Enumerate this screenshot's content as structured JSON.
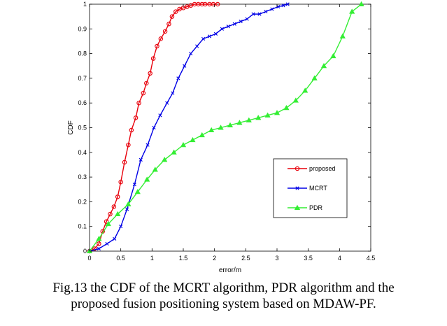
{
  "caption": {
    "line1": "Fig.13 the CDF of the MCRT algorithm, PDR algorithm and the",
    "line2": "proposed fusion positioning system based on MDAW-PF."
  },
  "chart_data": {
    "type": "line",
    "title": "",
    "xlabel": "error/m",
    "ylabel": "CDF",
    "xlim": [
      0,
      4.5
    ],
    "ylim": [
      0,
      1
    ],
    "xticks": [
      "0",
      "0.5",
      "1",
      "1.5",
      "2",
      "2.5",
      "3",
      "3.5",
      "4",
      "4.5"
    ],
    "yticks": [
      "0",
      "0.1",
      "0.2",
      "0.3",
      "0.4",
      "0.5",
      "0.6",
      "0.7",
      "0.8",
      "0.9",
      "1"
    ],
    "grid": false,
    "legend_position": "lower-right",
    "series": [
      {
        "name": "proposed",
        "color": "#e8000b",
        "marker": "circle",
        "x": [
          0,
          0.08,
          0.15,
          0.21,
          0.27,
          0.33,
          0.39,
          0.45,
          0.5,
          0.56,
          0.62,
          0.67,
          0.74,
          0.79,
          0.86,
          0.91,
          0.97,
          1.02,
          1.08,
          1.14,
          1.21,
          1.27,
          1.32,
          1.38,
          1.44,
          1.5,
          1.56,
          1.62,
          1.68,
          1.74,
          1.8,
          1.85,
          1.92,
          1.98,
          2.05
        ],
        "y": [
          0,
          0.01,
          0.03,
          0.08,
          0.12,
          0.15,
          0.18,
          0.22,
          0.28,
          0.36,
          0.43,
          0.49,
          0.54,
          0.6,
          0.64,
          0.68,
          0.72,
          0.78,
          0.83,
          0.86,
          0.89,
          0.92,
          0.95,
          0.97,
          0.98,
          0.985,
          0.99,
          0.995,
          1.0,
          1.0,
          1.0,
          1.0,
          1.0,
          1.0,
          1.0
        ]
      },
      {
        "name": "MCRT",
        "color": "#0000e6",
        "marker": "x",
        "x": [
          0,
          0.15,
          0.28,
          0.4,
          0.5,
          0.6,
          0.72,
          0.82,
          0.93,
          1.03,
          1.13,
          1.24,
          1.33,
          1.42,
          1.52,
          1.62,
          1.72,
          1.82,
          1.92,
          2.02,
          2.12,
          2.22,
          2.32,
          2.42,
          2.52,
          2.62,
          2.72,
          2.82,
          2.92,
          3.02,
          3.1,
          3.17
        ],
        "y": [
          0,
          0.01,
          0.03,
          0.05,
          0.1,
          0.17,
          0.27,
          0.37,
          0.43,
          0.5,
          0.55,
          0.6,
          0.64,
          0.7,
          0.75,
          0.8,
          0.83,
          0.86,
          0.87,
          0.88,
          0.9,
          0.91,
          0.92,
          0.93,
          0.94,
          0.96,
          0.96,
          0.97,
          0.98,
          0.99,
          0.995,
          1.0
        ]
      },
      {
        "name": "PDR",
        "color": "#33ee33",
        "marker": "triangle",
        "x": [
          0,
          0.15,
          0.3,
          0.45,
          0.62,
          0.77,
          0.92,
          1.05,
          1.2,
          1.35,
          1.5,
          1.65,
          1.8,
          1.95,
          2.1,
          2.25,
          2.4,
          2.55,
          2.7,
          2.85,
          3.0,
          3.15,
          3.3,
          3.45,
          3.6,
          3.75,
          3.9,
          4.05,
          4.2,
          4.35
        ],
        "y": [
          0,
          0.05,
          0.11,
          0.15,
          0.19,
          0.24,
          0.29,
          0.33,
          0.37,
          0.4,
          0.43,
          0.45,
          0.47,
          0.49,
          0.5,
          0.51,
          0.52,
          0.53,
          0.54,
          0.55,
          0.56,
          0.58,
          0.61,
          0.65,
          0.7,
          0.75,
          0.79,
          0.87,
          0.97,
          1.0
        ]
      }
    ]
  }
}
